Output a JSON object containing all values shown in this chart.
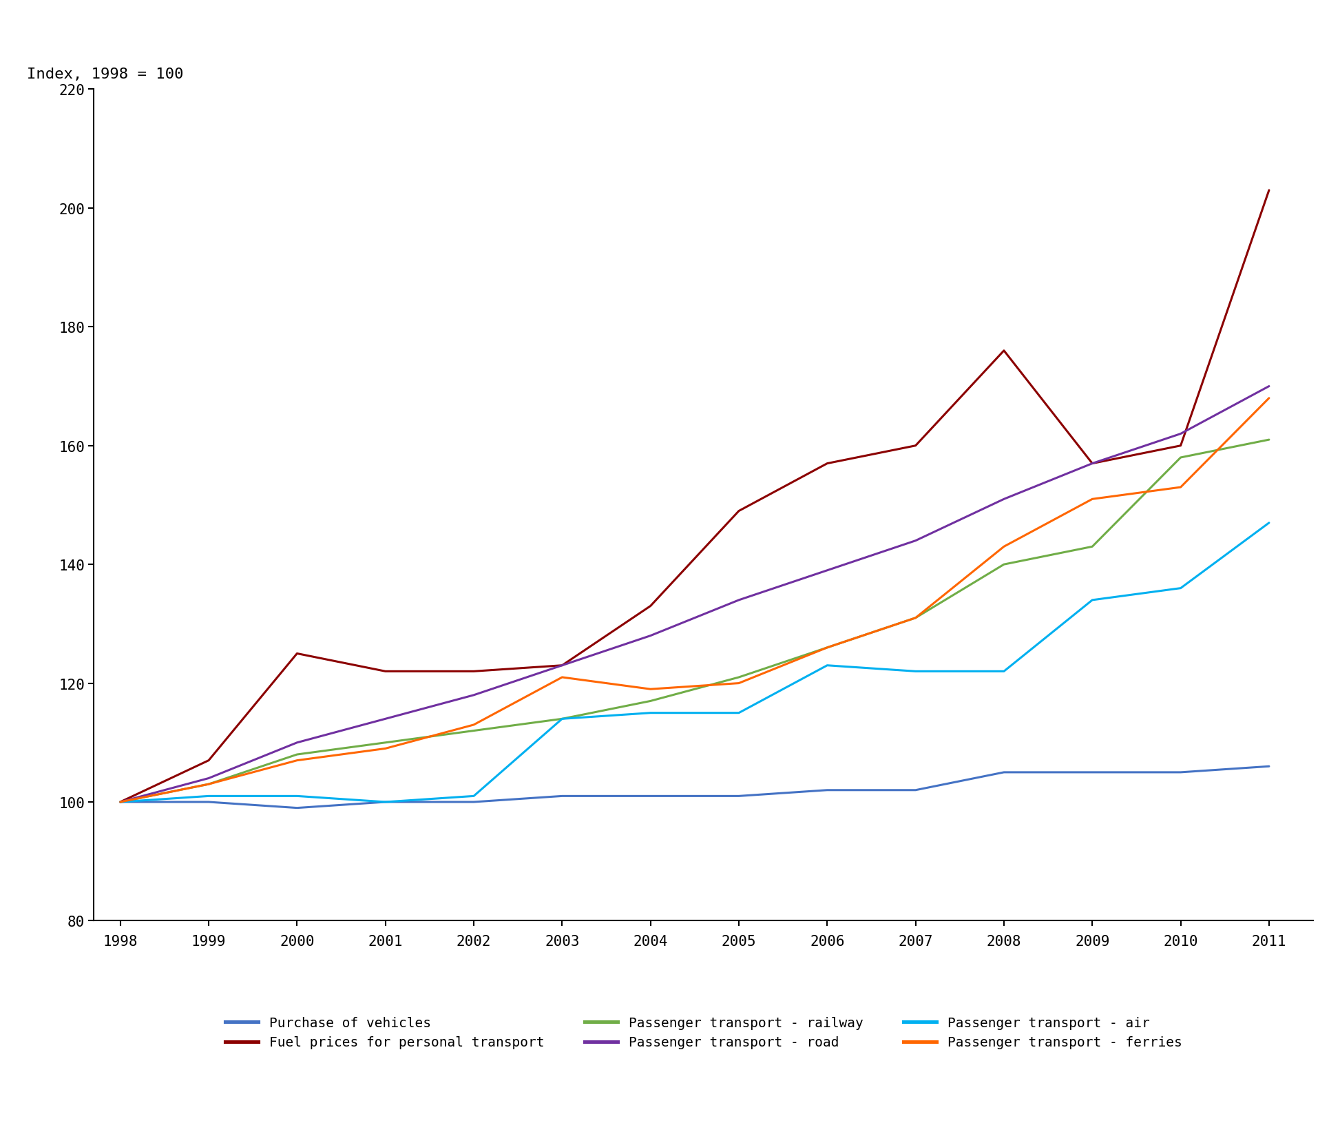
{
  "years": [
    1998,
    1999,
    2000,
    2001,
    2002,
    2003,
    2004,
    2005,
    2006,
    2007,
    2008,
    2009,
    2010,
    2011
  ],
  "series": {
    "Purchase of vehicles": {
      "color": "#4472C4",
      "values": [
        100,
        100,
        99,
        100,
        100,
        101,
        101,
        101,
        102,
        102,
        105,
        105,
        105,
        106
      ]
    },
    "Fuel prices for personal transport": {
      "color": "#8B0000",
      "values": [
        100,
        107,
        125,
        122,
        122,
        123,
        133,
        149,
        157,
        160,
        176,
        157,
        160,
        203
      ]
    },
    "Passenger transport - railway": {
      "color": "#70AD47",
      "values": [
        100,
        103,
        108,
        110,
        112,
        114,
        117,
        121,
        126,
        131,
        140,
        143,
        158,
        161
      ]
    },
    "Passenger transport - road": {
      "color": "#7030A0",
      "values": [
        100,
        104,
        110,
        114,
        118,
        123,
        128,
        134,
        139,
        144,
        151,
        157,
        162,
        170
      ]
    },
    "Passenger transport - air": {
      "color": "#00B0F0",
      "values": [
        100,
        101,
        101,
        100,
        101,
        114,
        115,
        115,
        123,
        122,
        122,
        134,
        136,
        147
      ]
    },
    "Passenger transport - ferries": {
      "color": "#FF6600",
      "values": [
        100,
        103,
        107,
        109,
        113,
        121,
        119,
        120,
        126,
        131,
        143,
        151,
        153,
        168
      ]
    }
  },
  "legend_order": [
    "Purchase of vehicles",
    "Fuel prices for personal transport",
    "Passenger transport - railway",
    "Passenger transport - road",
    "Passenger transport - air",
    "Passenger transport - ferries"
  ],
  "ylim": [
    80,
    220
  ],
  "yticks": [
    80,
    100,
    120,
    140,
    160,
    180,
    200,
    220
  ],
  "ylabel": "Index, 1998 = 100",
  "background_color": "#ffffff",
  "spine_color": "#000000",
  "title_fontsize": 16,
  "axis_fontsize": 15,
  "legend_fontsize": 14,
  "line_width": 2.2
}
